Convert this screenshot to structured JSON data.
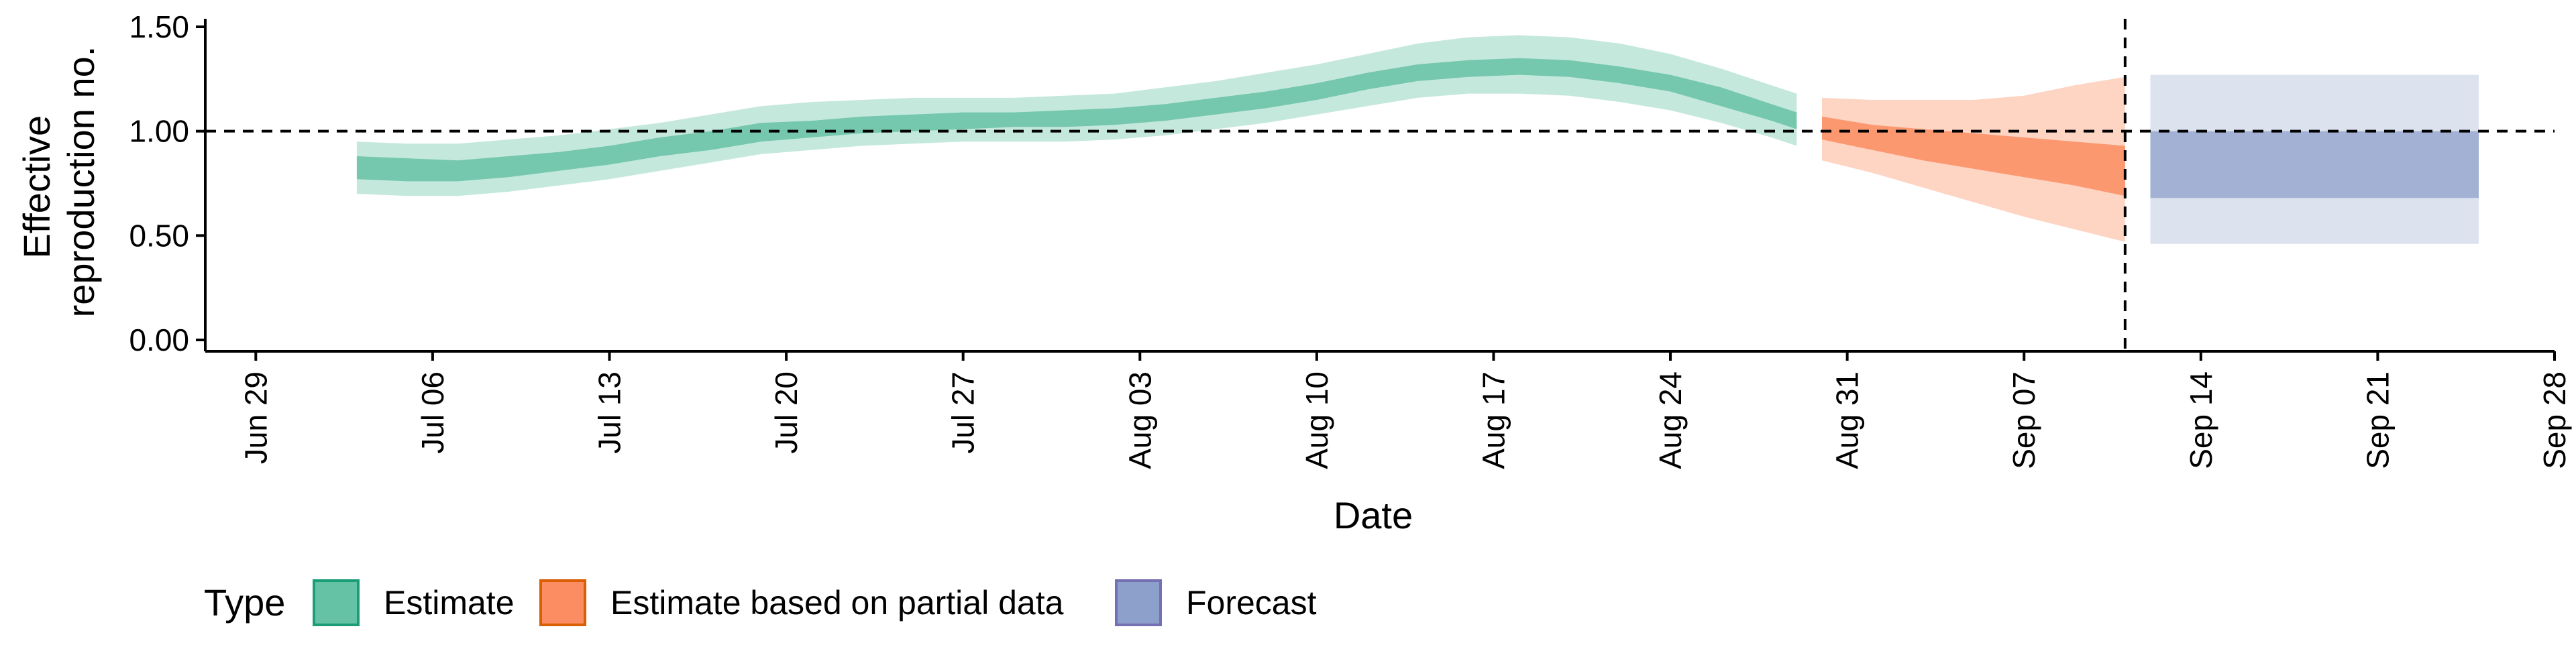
{
  "chart_data": {
    "type": "area",
    "title": "",
    "xlabel": "Date",
    "ylabel": [
      "Effective",
      "reproduction no."
    ],
    "ylim": [
      0,
      1.55
    ],
    "xlim": [
      "2020-06-27",
      "2020-09-28"
    ],
    "y_ticks": [
      {
        "value": 0,
        "label": "0.00"
      },
      {
        "value": 0.5,
        "label": "0.50"
      },
      {
        "value": 1.0,
        "label": "1.00"
      },
      {
        "value": 1.5,
        "label": "1.50"
      }
    ],
    "x_ticks": [
      {
        "date": "2020-06-29",
        "label": "Jun 29"
      },
      {
        "date": "2020-07-06",
        "label": "Jul 06"
      },
      {
        "date": "2020-07-13",
        "label": "Jul 13"
      },
      {
        "date": "2020-07-20",
        "label": "Jul 20"
      },
      {
        "date": "2020-07-27",
        "label": "Jul 27"
      },
      {
        "date": "2020-08-03",
        "label": "Aug 03"
      },
      {
        "date": "2020-08-10",
        "label": "Aug 10"
      },
      {
        "date": "2020-08-17",
        "label": "Aug 17"
      },
      {
        "date": "2020-08-24",
        "label": "Aug 24"
      },
      {
        "date": "2020-08-31",
        "label": "Aug 31"
      },
      {
        "date": "2020-09-07",
        "label": "Sep 07"
      },
      {
        "date": "2020-09-14",
        "label": "Sep 14"
      },
      {
        "date": "2020-09-21",
        "label": "Sep 21"
      },
      {
        "date": "2020-09-28",
        "label": "Sep 28"
      }
    ],
    "reference_lines": {
      "horizontal_y": 1.0,
      "vertical_date": "2020-09-11",
      "style": "dashed"
    },
    "grid": false,
    "legend": {
      "position": "bottom-left",
      "title": "Type",
      "entries": [
        {
          "label": "Estimate",
          "fill": "#66c2a5",
          "stroke": "#1b9e77"
        },
        {
          "label": "Estimate based on partial data",
          "fill": "#fc8d62",
          "stroke": "#d95f02"
        },
        {
          "label": "Forecast",
          "fill": "#8da0cb",
          "stroke": "#7570b3"
        }
      ]
    },
    "series": [
      {
        "name": "Estimate",
        "color": "#66c2a5",
        "outer_opacity": 0.38,
        "inner_opacity": 0.85,
        "points": [
          {
            "date": "2020-07-03",
            "lo90": 0.7,
            "lo50": 0.77,
            "hi50": 0.88,
            "hi90": 0.95
          },
          {
            "date": "2020-07-05",
            "lo90": 0.69,
            "lo50": 0.76,
            "hi50": 0.87,
            "hi90": 0.94
          },
          {
            "date": "2020-07-07",
            "lo90": 0.69,
            "lo50": 0.76,
            "hi50": 0.86,
            "hi90": 0.94
          },
          {
            "date": "2020-07-09",
            "lo90": 0.71,
            "lo50": 0.78,
            "hi50": 0.88,
            "hi90": 0.96
          },
          {
            "date": "2020-07-11",
            "lo90": 0.74,
            "lo50": 0.81,
            "hi50": 0.9,
            "hi90": 0.98
          },
          {
            "date": "2020-07-13",
            "lo90": 0.77,
            "lo50": 0.84,
            "hi50": 0.93,
            "hi90": 1.01
          },
          {
            "date": "2020-07-15",
            "lo90": 0.81,
            "lo50": 0.88,
            "hi50": 0.97,
            "hi90": 1.04
          },
          {
            "date": "2020-07-17",
            "lo90": 0.85,
            "lo50": 0.91,
            "hi50": 1.0,
            "hi90": 1.08
          },
          {
            "date": "2020-07-19",
            "lo90": 0.89,
            "lo50": 0.95,
            "hi50": 1.04,
            "hi90": 1.12
          },
          {
            "date": "2020-07-21",
            "lo90": 0.91,
            "lo50": 0.97,
            "hi50": 1.05,
            "hi90": 1.14
          },
          {
            "date": "2020-07-23",
            "lo90": 0.93,
            "lo50": 0.99,
            "hi50": 1.07,
            "hi90": 1.15
          },
          {
            "date": "2020-07-25",
            "lo90": 0.94,
            "lo50": 1.0,
            "hi50": 1.08,
            "hi90": 1.16
          },
          {
            "date": "2020-07-27",
            "lo90": 0.95,
            "lo50": 1.01,
            "hi50": 1.09,
            "hi90": 1.16
          },
          {
            "date": "2020-07-29",
            "lo90": 0.95,
            "lo50": 1.02,
            "hi50": 1.09,
            "hi90": 1.16
          },
          {
            "date": "2020-07-31",
            "lo90": 0.95,
            "lo50": 1.02,
            "hi50": 1.1,
            "hi90": 1.17
          },
          {
            "date": "2020-08-02",
            "lo90": 0.96,
            "lo50": 1.03,
            "hi50": 1.11,
            "hi90": 1.18
          },
          {
            "date": "2020-08-04",
            "lo90": 0.98,
            "lo50": 1.05,
            "hi50": 1.13,
            "hi90": 1.21
          },
          {
            "date": "2020-08-06",
            "lo90": 1.01,
            "lo50": 1.08,
            "hi50": 1.16,
            "hi90": 1.24
          },
          {
            "date": "2020-08-08",
            "lo90": 1.04,
            "lo50": 1.11,
            "hi50": 1.19,
            "hi90": 1.28
          },
          {
            "date": "2020-08-10",
            "lo90": 1.08,
            "lo50": 1.15,
            "hi50": 1.23,
            "hi90": 1.32
          },
          {
            "date": "2020-08-12",
            "lo90": 1.12,
            "lo50": 1.2,
            "hi50": 1.28,
            "hi90": 1.37
          },
          {
            "date": "2020-08-14",
            "lo90": 1.16,
            "lo50": 1.24,
            "hi50": 1.32,
            "hi90": 1.42
          },
          {
            "date": "2020-08-16",
            "lo90": 1.18,
            "lo50": 1.26,
            "hi50": 1.34,
            "hi90": 1.45
          },
          {
            "date": "2020-08-18",
            "lo90": 1.18,
            "lo50": 1.27,
            "hi50": 1.35,
            "hi90": 1.46
          },
          {
            "date": "2020-08-20",
            "lo90": 1.17,
            "lo50": 1.26,
            "hi50": 1.34,
            "hi90": 1.45
          },
          {
            "date": "2020-08-22",
            "lo90": 1.14,
            "lo50": 1.23,
            "hi50": 1.31,
            "hi90": 1.42
          },
          {
            "date": "2020-08-24",
            "lo90": 1.1,
            "lo50": 1.19,
            "hi50": 1.27,
            "hi90": 1.37
          },
          {
            "date": "2020-08-26",
            "lo90": 1.04,
            "lo50": 1.12,
            "hi50": 1.21,
            "hi90": 1.3
          },
          {
            "date": "2020-08-28",
            "lo90": 0.97,
            "lo50": 1.05,
            "hi50": 1.13,
            "hi90": 1.22
          },
          {
            "date": "2020-08-29",
            "lo90": 0.93,
            "lo50": 1.01,
            "hi50": 1.09,
            "hi90": 1.18
          }
        ]
      },
      {
        "name": "Estimate based on partial data",
        "color": "#fc8d62",
        "outer_opacity": 0.38,
        "inner_opacity": 0.85,
        "points": [
          {
            "date": "2020-08-30",
            "lo90": 0.86,
            "lo50": 0.96,
            "hi50": 1.07,
            "hi90": 1.16
          },
          {
            "date": "2020-09-01",
            "lo90": 0.8,
            "lo50": 0.91,
            "hi50": 1.03,
            "hi90": 1.15
          },
          {
            "date": "2020-09-03",
            "lo90": 0.73,
            "lo50": 0.86,
            "hi50": 1.01,
            "hi90": 1.15
          },
          {
            "date": "2020-09-05",
            "lo90": 0.66,
            "lo50": 0.82,
            "hi50": 0.99,
            "hi90": 1.15
          },
          {
            "date": "2020-09-07",
            "lo90": 0.59,
            "lo50": 0.78,
            "hi50": 0.97,
            "hi90": 1.17
          },
          {
            "date": "2020-09-09",
            "lo90": 0.53,
            "lo50": 0.74,
            "hi50": 0.95,
            "hi90": 1.22
          },
          {
            "date": "2020-09-11",
            "lo90": 0.47,
            "lo50": 0.69,
            "hi50": 0.93,
            "hi90": 1.26
          }
        ]
      },
      {
        "name": "Forecast",
        "color": "#8da0cb",
        "outer_opacity": 0.3,
        "inner_opacity": 0.75,
        "points": [
          {
            "date": "2020-09-12",
            "lo90": 0.46,
            "lo50": 0.68,
            "hi50": 1.0,
            "hi90": 1.27
          },
          {
            "date": "2020-09-25",
            "lo90": 0.46,
            "lo50": 0.68,
            "hi50": 1.0,
            "hi90": 1.27
          }
        ]
      }
    ]
  }
}
